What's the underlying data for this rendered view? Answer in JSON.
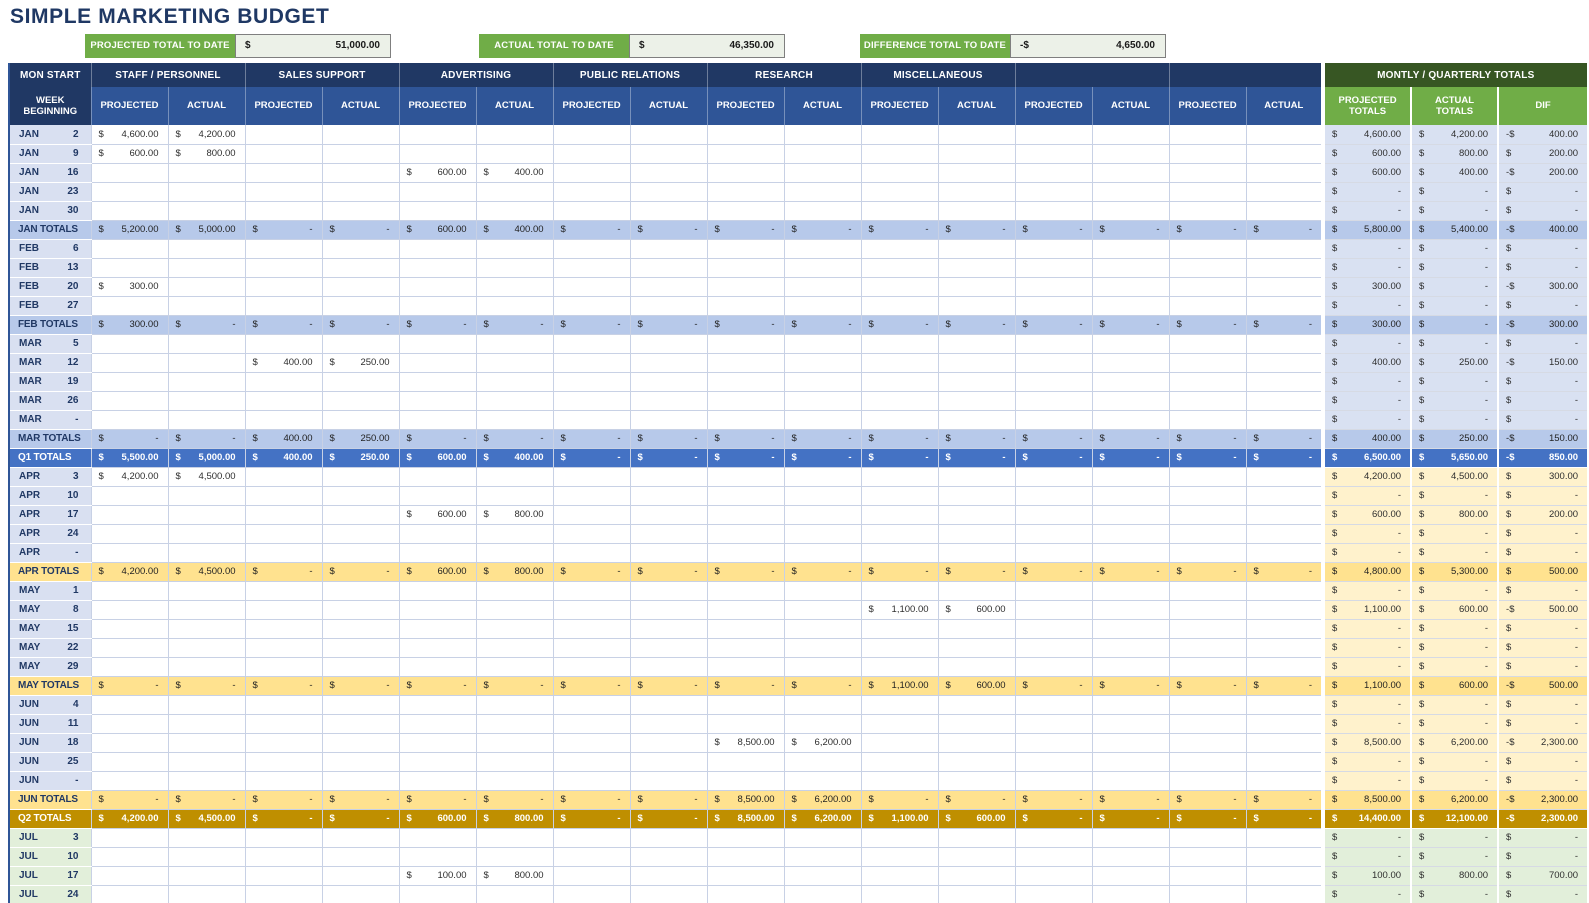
{
  "title": "SIMPLE MARKETING BUDGET",
  "colors": {
    "titleColor": "#1F3864",
    "navy": "#203864",
    "blue": "#2F5597",
    "green": "#70AD47",
    "dkgreen": "#375623",
    "grid": "#C8D1E5",
    "labelBlue": "#D9E0F1",
    "summaryValueBg": "#ECF1E8",
    "q1Pale": "#D9E1F2",
    "q1Mid": "#B7C9EA",
    "q1Strong": "#4472C4",
    "q2Pale": "#FFF2CC",
    "q2Mid": "#FFE28F",
    "q2Strong": "#BF8F00",
    "q3Pale": "#E2EFDA"
  },
  "summary": [
    {
      "label": "PROJECTED TOTAL TO DATE",
      "currency": "$",
      "value": "51,000.00"
    },
    {
      "label": "ACTUAL TOTAL TO DATE",
      "currency": "$",
      "value": "46,350.00"
    },
    {
      "label": "DIFFERENCE TOTAL TO DATE",
      "currency": "-$",
      "value": "4,650.00"
    }
  ],
  "table": {
    "corner_header": "MON START",
    "week_header": "WEEK BEGINNING",
    "categories": [
      "STAFF / PERSONNEL",
      "SALES SUPPORT",
      "ADVERTISING",
      "PUBLIC RELATIONS",
      "RESEARCH",
      "MISCELLANEOUS",
      "",
      ""
    ],
    "projected_label": "PROJECTED",
    "actual_label": "ACTUAL",
    "totals_header": "MONTLY / QUARTERLY TOTALS",
    "totals_sub_headers": [
      "PROJECTED TOTALS",
      "ACTUAL TOTALS",
      "DIF"
    ],
    "rows": [
      {
        "type": "week",
        "q": "q1",
        "month": "JAN",
        "day": "2",
        "cells": {
          "0": "4,600.00",
          "1": "4,200.00"
        },
        "totals": [
          "4,600.00",
          "4,200.00",
          "-400.00"
        ]
      },
      {
        "type": "week",
        "q": "q1",
        "month": "JAN",
        "day": "9",
        "cells": {
          "0": "600.00",
          "1": "800.00"
        },
        "totals": [
          "600.00",
          "800.00",
          "200.00"
        ]
      },
      {
        "type": "week",
        "q": "q1",
        "month": "JAN",
        "day": "16",
        "cells": {
          "4": "600.00",
          "5": "400.00"
        },
        "totals": [
          "600.00",
          "400.00",
          "-200.00"
        ]
      },
      {
        "type": "week",
        "q": "q1",
        "month": "JAN",
        "day": "23",
        "cells": {},
        "totals": [
          "-",
          "-",
          "-"
        ]
      },
      {
        "type": "week",
        "q": "q1",
        "month": "JAN",
        "day": "30",
        "cells": {},
        "totals": [
          "-",
          "-",
          "-"
        ]
      },
      {
        "type": "mtotal",
        "q": "q1",
        "label": "JAN TOTALS",
        "cells": [
          "5,200.00",
          "5,000.00",
          "-",
          "-",
          "600.00",
          "400.00",
          "-",
          "-",
          "-",
          "-",
          "-",
          "-",
          "-",
          "-",
          "-",
          "-"
        ],
        "totals": [
          "5,800.00",
          "5,400.00",
          "-400.00"
        ]
      },
      {
        "type": "week",
        "q": "q1",
        "month": "FEB",
        "day": "6",
        "cells": {},
        "totals": [
          "-",
          "-",
          "-"
        ]
      },
      {
        "type": "week",
        "q": "q1",
        "month": "FEB",
        "day": "13",
        "cells": {},
        "totals": [
          "-",
          "-",
          "-"
        ]
      },
      {
        "type": "week",
        "q": "q1",
        "month": "FEB",
        "day": "20",
        "cells": {
          "0": "300.00"
        },
        "totals": [
          "300.00",
          "-",
          "-300.00"
        ]
      },
      {
        "type": "week",
        "q": "q1",
        "month": "FEB",
        "day": "27",
        "cells": {},
        "totals": [
          "-",
          "-",
          "-"
        ]
      },
      {
        "type": "mtotal",
        "q": "q1",
        "label": "FEB TOTALS",
        "cells": [
          "300.00",
          "-",
          "-",
          "-",
          "-",
          "-",
          "-",
          "-",
          "-",
          "-",
          "-",
          "-",
          "-",
          "-",
          "-",
          "-"
        ],
        "totals": [
          "300.00",
          "-",
          "-300.00"
        ]
      },
      {
        "type": "week",
        "q": "q1",
        "month": "MAR",
        "day": "5",
        "cells": {},
        "totals": [
          "-",
          "-",
          "-"
        ]
      },
      {
        "type": "week",
        "q": "q1",
        "month": "MAR",
        "day": "12",
        "cells": {
          "2": "400.00",
          "3": "250.00"
        },
        "totals": [
          "400.00",
          "250.00",
          "-150.00"
        ]
      },
      {
        "type": "week",
        "q": "q1",
        "month": "MAR",
        "day": "19",
        "cells": {},
        "totals": [
          "-",
          "-",
          "-"
        ]
      },
      {
        "type": "week",
        "q": "q1",
        "month": "MAR",
        "day": "26",
        "cells": {},
        "totals": [
          "-",
          "-",
          "-"
        ]
      },
      {
        "type": "week",
        "q": "q1",
        "month": "MAR",
        "day": "-",
        "cells": {},
        "totals": [
          "-",
          "-",
          "-"
        ]
      },
      {
        "type": "mtotal",
        "q": "q1",
        "label": "MAR TOTALS",
        "cells": [
          "-",
          "-",
          "400.00",
          "250.00",
          "-",
          "-",
          "-",
          "-",
          "-",
          "-",
          "-",
          "-",
          "-",
          "-",
          "-",
          "-"
        ],
        "totals": [
          "400.00",
          "250.00",
          "-150.00"
        ]
      },
      {
        "type": "qtotal",
        "q": "q1",
        "label": "Q1 TOTALS",
        "cells": [
          "5,500.00",
          "5,000.00",
          "400.00",
          "250.00",
          "600.00",
          "400.00",
          "-",
          "-",
          "-",
          "-",
          "-",
          "-",
          "-",
          "-",
          "-",
          "-"
        ],
        "totals": [
          "6,500.00",
          "5,650.00",
          "-850.00"
        ]
      },
      {
        "type": "week",
        "q": "q2",
        "month": "APR",
        "day": "3",
        "cells": {
          "0": "4,200.00",
          "1": "4,500.00"
        },
        "totals": [
          "4,200.00",
          "4,500.00",
          "300.00"
        ]
      },
      {
        "type": "week",
        "q": "q2",
        "month": "APR",
        "day": "10",
        "cells": {},
        "totals": [
          "-",
          "-",
          "-"
        ]
      },
      {
        "type": "week",
        "q": "q2",
        "month": "APR",
        "day": "17",
        "cells": {
          "4": "600.00",
          "5": "800.00"
        },
        "totals": [
          "600.00",
          "800.00",
          "200.00"
        ]
      },
      {
        "type": "week",
        "q": "q2",
        "month": "APR",
        "day": "24",
        "cells": {},
        "totals": [
          "-",
          "-",
          "-"
        ]
      },
      {
        "type": "week",
        "q": "q2",
        "month": "APR",
        "day": "-",
        "cells": {},
        "totals": [
          "-",
          "-",
          "-"
        ]
      },
      {
        "type": "mtotal",
        "q": "q2",
        "label": "APR TOTALS",
        "cells": [
          "4,200.00",
          "4,500.00",
          "-",
          "-",
          "600.00",
          "800.00",
          "-",
          "-",
          "-",
          "-",
          "-",
          "-",
          "-",
          "-",
          "-",
          "-"
        ],
        "totals": [
          "4,800.00",
          "5,300.00",
          "500.00"
        ]
      },
      {
        "type": "week",
        "q": "q2",
        "month": "MAY",
        "day": "1",
        "cells": {},
        "totals": [
          "-",
          "-",
          "-"
        ]
      },
      {
        "type": "week",
        "q": "q2",
        "month": "MAY",
        "day": "8",
        "cells": {
          "10": "1,100.00",
          "11": "600.00"
        },
        "totals": [
          "1,100.00",
          "600.00",
          "-500.00"
        ]
      },
      {
        "type": "week",
        "q": "q2",
        "month": "MAY",
        "day": "15",
        "cells": {},
        "totals": [
          "-",
          "-",
          "-"
        ]
      },
      {
        "type": "week",
        "q": "q2",
        "month": "MAY",
        "day": "22",
        "cells": {},
        "totals": [
          "-",
          "-",
          "-"
        ]
      },
      {
        "type": "week",
        "q": "q2",
        "month": "MAY",
        "day": "29",
        "cells": {},
        "totals": [
          "-",
          "-",
          "-"
        ]
      },
      {
        "type": "mtotal",
        "q": "q2",
        "label": "MAY TOTALS",
        "cells": [
          "-",
          "-",
          "-",
          "-",
          "-",
          "-",
          "-",
          "-",
          "-",
          "-",
          "1,100.00",
          "600.00",
          "-",
          "-",
          "-",
          "-"
        ],
        "totals": [
          "1,100.00",
          "600.00",
          "-500.00"
        ]
      },
      {
        "type": "week",
        "q": "q2",
        "month": "JUN",
        "day": "4",
        "cells": {},
        "totals": [
          "-",
          "-",
          "-"
        ]
      },
      {
        "type": "week",
        "q": "q2",
        "month": "JUN",
        "day": "11",
        "cells": {},
        "totals": [
          "-",
          "-",
          "-"
        ]
      },
      {
        "type": "week",
        "q": "q2",
        "month": "JUN",
        "day": "18",
        "cells": {
          "8": "8,500.00",
          "9": "6,200.00"
        },
        "totals": [
          "8,500.00",
          "6,200.00",
          "-2,300.00"
        ]
      },
      {
        "type": "week",
        "q": "q2",
        "month": "JUN",
        "day": "25",
        "cells": {},
        "totals": [
          "-",
          "-",
          "-"
        ]
      },
      {
        "type": "week",
        "q": "q2",
        "month": "JUN",
        "day": "-",
        "cells": {},
        "totals": [
          "-",
          "-",
          "-"
        ]
      },
      {
        "type": "mtotal",
        "q": "q2",
        "label": "JUN TOTALS",
        "cells": [
          "-",
          "-",
          "-",
          "-",
          "-",
          "-",
          "-",
          "-",
          "8,500.00",
          "6,200.00",
          "-",
          "-",
          "-",
          "-",
          "-",
          "-"
        ],
        "totals": [
          "8,500.00",
          "6,200.00",
          "-2,300.00"
        ]
      },
      {
        "type": "qtotal",
        "q": "q2",
        "label": "Q2 TOTALS",
        "cells": [
          "4,200.00",
          "4,500.00",
          "-",
          "-",
          "600.00",
          "800.00",
          "-",
          "-",
          "8,500.00",
          "6,200.00",
          "1,100.00",
          "600.00",
          "-",
          "-",
          "-",
          "-"
        ],
        "totals": [
          "14,400.00",
          "12,100.00",
          "-2,300.00"
        ]
      },
      {
        "type": "week",
        "q": "q3",
        "month": "JUL",
        "day": "3",
        "cells": {},
        "totals": [
          "-",
          "-",
          "-"
        ]
      },
      {
        "type": "week",
        "q": "q3",
        "month": "JUL",
        "day": "10",
        "cells": {},
        "totals": [
          "-",
          "-",
          "-"
        ]
      },
      {
        "type": "week",
        "q": "q3",
        "month": "JUL",
        "day": "17",
        "cells": {
          "4": "100.00",
          "5": "800.00"
        },
        "totals": [
          "100.00",
          "800.00",
          "700.00"
        ]
      },
      {
        "type": "week",
        "q": "q3",
        "month": "JUL",
        "day": "24",
        "cells": {},
        "totals": [
          "-",
          "-",
          "-"
        ]
      }
    ]
  }
}
